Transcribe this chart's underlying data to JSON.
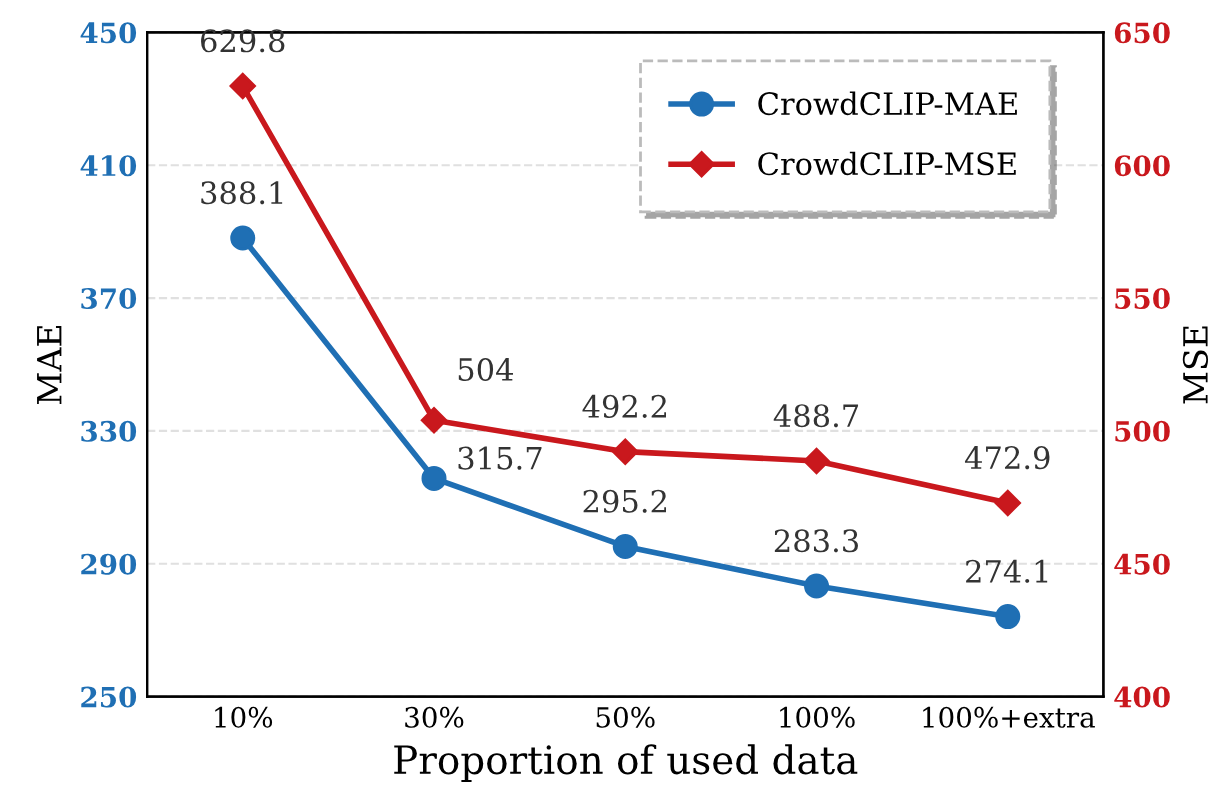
{
  "chart_data": {
    "type": "line",
    "xlabel": "Proportion of used data",
    "ylabel": "MAE",
    "y2label": "MSE",
    "categories": [
      "10%",
      "30%",
      "50%",
      "100%",
      "100%+extra"
    ],
    "series": [
      {
        "name": "CrowdCLIP-MAE",
        "color": "#1f6fb4",
        "values": [
          388.1,
          315.7,
          295.2,
          283.3,
          274.1
        ],
        "marker": "circle"
      },
      {
        "name": "CrowdCLIP-MSE",
        "color": "#c9181d",
        "values": [
          629.8,
          504,
          492.2,
          488.7,
          472.9
        ],
        "marker": "diamond",
        "axis": "y2"
      }
    ],
    "ylim": [
      250,
      450
    ],
    "yticks": [
      250,
      290,
      330,
      370,
      410,
      450
    ],
    "y2lim": [
      400,
      650
    ],
    "y2ticks": [
      400,
      450,
      500,
      550,
      600,
      650
    ],
    "grid": "y",
    "legend": "top right",
    "data_labels": true,
    "line_style": "solid"
  }
}
